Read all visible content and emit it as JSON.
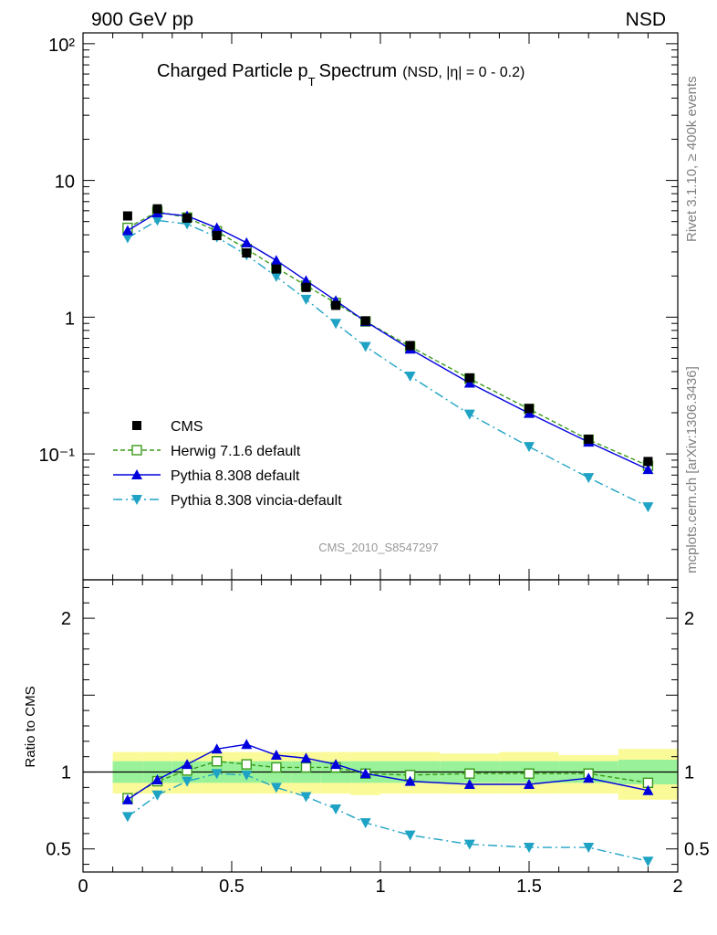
{
  "header": {
    "left": "900 GeV pp",
    "right": "NSD",
    "side_top": "Rivet 3.1.10, ≥ 400k events",
    "side_bottom": "mcplots.cern.ch [arXiv:1306.3436]"
  },
  "colors": {
    "CMS": "#000000",
    "Herwig": "#3a9a1a",
    "Pythia": "#0000dd",
    "Vincia": "#1fa3c4",
    "band_inner": "#99f299",
    "band_outer": "#fafa99"
  },
  "chart_data": [
    {
      "type": "line",
      "title": "Charged Particle p",
      "title_sub": "T",
      "title_rest": "Spectrum",
      "title_extra": "(NSD, |η| =   0 - 0.2)",
      "watermark": "CMS_2010_S8547297",
      "xlabel": "",
      "ylabel": "",
      "log_y": true,
      "xlim": [
        0,
        2
      ],
      "ylim": [
        0.012,
        120
      ],
      "ytick_values": [
        100,
        10,
        1,
        0.1
      ],
      "ytick_labels": [
        "10²",
        "10",
        "1",
        "10⁻¹"
      ],
      "xtick_values": [
        0,
        0.5,
        1,
        1.5,
        2
      ],
      "legend_position": "bottom-left",
      "x": [
        0.15,
        0.25,
        0.35,
        0.45,
        0.55,
        0.65,
        0.75,
        0.85,
        0.95,
        1.1,
        1.3,
        1.5,
        1.7,
        1.9
      ],
      "series": [
        {
          "name": "CMS",
          "marker": "filled-square",
          "values": [
            5.5,
            6.2,
            5.3,
            3.95,
            2.95,
            2.25,
            1.65,
            1.22,
            0.94,
            0.62,
            0.36,
            0.215,
            0.128,
            0.088
          ]
        },
        {
          "name": "Herwig 7.1.6 default",
          "marker": "open-square",
          "values": [
            4.5,
            5.9,
            5.35,
            4.25,
            3.15,
            2.3,
            1.7,
            1.27,
            0.93,
            0.61,
            0.355,
            0.213,
            0.127,
            0.082
          ]
        },
        {
          "name": "Pythia 8.308 default",
          "marker": "triangle-up",
          "values": [
            4.3,
            5.8,
            5.5,
            4.5,
            3.5,
            2.6,
            1.85,
            1.32,
            0.93,
            0.585,
            0.33,
            0.198,
            0.122,
            0.077
          ]
        },
        {
          "name": "Pythia 8.308 vincia-default",
          "marker": "triangle-down",
          "values": [
            3.8,
            5.1,
            4.8,
            3.85,
            2.85,
            1.98,
            1.35,
            0.9,
            0.61,
            0.37,
            0.195,
            0.113,
            0.067,
            0.041
          ]
        }
      ]
    },
    {
      "type": "line",
      "title": "",
      "xlabel": "",
      "ylabel": "Ratio to CMS",
      "xlim": [
        0,
        2
      ],
      "ylim": [
        0.35,
        2.25
      ],
      "ytick_values": [
        0.5,
        1,
        2
      ],
      "ytick_labels": [
        "0.5",
        "1",
        "2"
      ],
      "xtick_values": [
        0,
        0.5,
        1,
        1.5,
        2
      ],
      "xtick_labels": [
        "0",
        "0.5",
        "1",
        "1.5",
        "2"
      ],
      "bin_edges": [
        0.1,
        0.2,
        0.3,
        0.4,
        0.5,
        0.6,
        0.7,
        0.8,
        0.9,
        1.0,
        1.2,
        1.4,
        1.6,
        1.8,
        2.0
      ],
      "band_inner": [
        [
          0.93,
          1.07
        ],
        [
          0.93,
          1.07
        ],
        [
          0.93,
          1.07
        ],
        [
          0.93,
          1.07
        ],
        [
          0.93,
          1.07
        ],
        [
          0.93,
          1.07
        ],
        [
          0.93,
          1.07
        ],
        [
          0.93,
          1.07
        ],
        [
          0.93,
          1.07
        ],
        [
          0.93,
          1.07
        ],
        [
          0.93,
          1.07
        ],
        [
          0.93,
          1.07
        ],
        [
          0.93,
          1.07
        ],
        [
          0.92,
          1.08
        ]
      ],
      "band_outer": [
        [
          0.86,
          1.13
        ],
        [
          0.86,
          1.13
        ],
        [
          0.86,
          1.13
        ],
        [
          0.86,
          1.13
        ],
        [
          0.86,
          1.13
        ],
        [
          0.86,
          1.13
        ],
        [
          0.86,
          1.13
        ],
        [
          0.86,
          1.13
        ],
        [
          0.85,
          1.13
        ],
        [
          0.86,
          1.13
        ],
        [
          0.86,
          1.12
        ],
        [
          0.86,
          1.13
        ],
        [
          0.86,
          1.11
        ],
        [
          0.82,
          1.15
        ]
      ],
      "x": [
        0.15,
        0.25,
        0.35,
        0.45,
        0.55,
        0.65,
        0.75,
        0.85,
        0.95,
        1.1,
        1.3,
        1.5,
        1.7,
        1.9
      ],
      "series": [
        {
          "name": "Herwig 7.1.6 default",
          "marker": "open-square",
          "values": [
            0.83,
            0.94,
            1.01,
            1.07,
            1.05,
            1.03,
            1.03,
            1.03,
            0.99,
            0.98,
            0.99,
            0.99,
            0.99,
            0.93
          ]
        },
        {
          "name": "Pythia 8.308 default",
          "marker": "triangle-up",
          "values": [
            0.82,
            0.95,
            1.05,
            1.15,
            1.18,
            1.11,
            1.09,
            1.05,
            0.99,
            0.94,
            0.92,
            0.92,
            0.96,
            0.88
          ]
        },
        {
          "name": "Pythia 8.308 vincia-default",
          "marker": "triangle-down",
          "values": [
            0.71,
            0.85,
            0.94,
            0.99,
            0.98,
            0.9,
            0.84,
            0.76,
            0.67,
            0.59,
            0.53,
            0.51,
            0.51,
            0.42
          ]
        }
      ]
    }
  ]
}
